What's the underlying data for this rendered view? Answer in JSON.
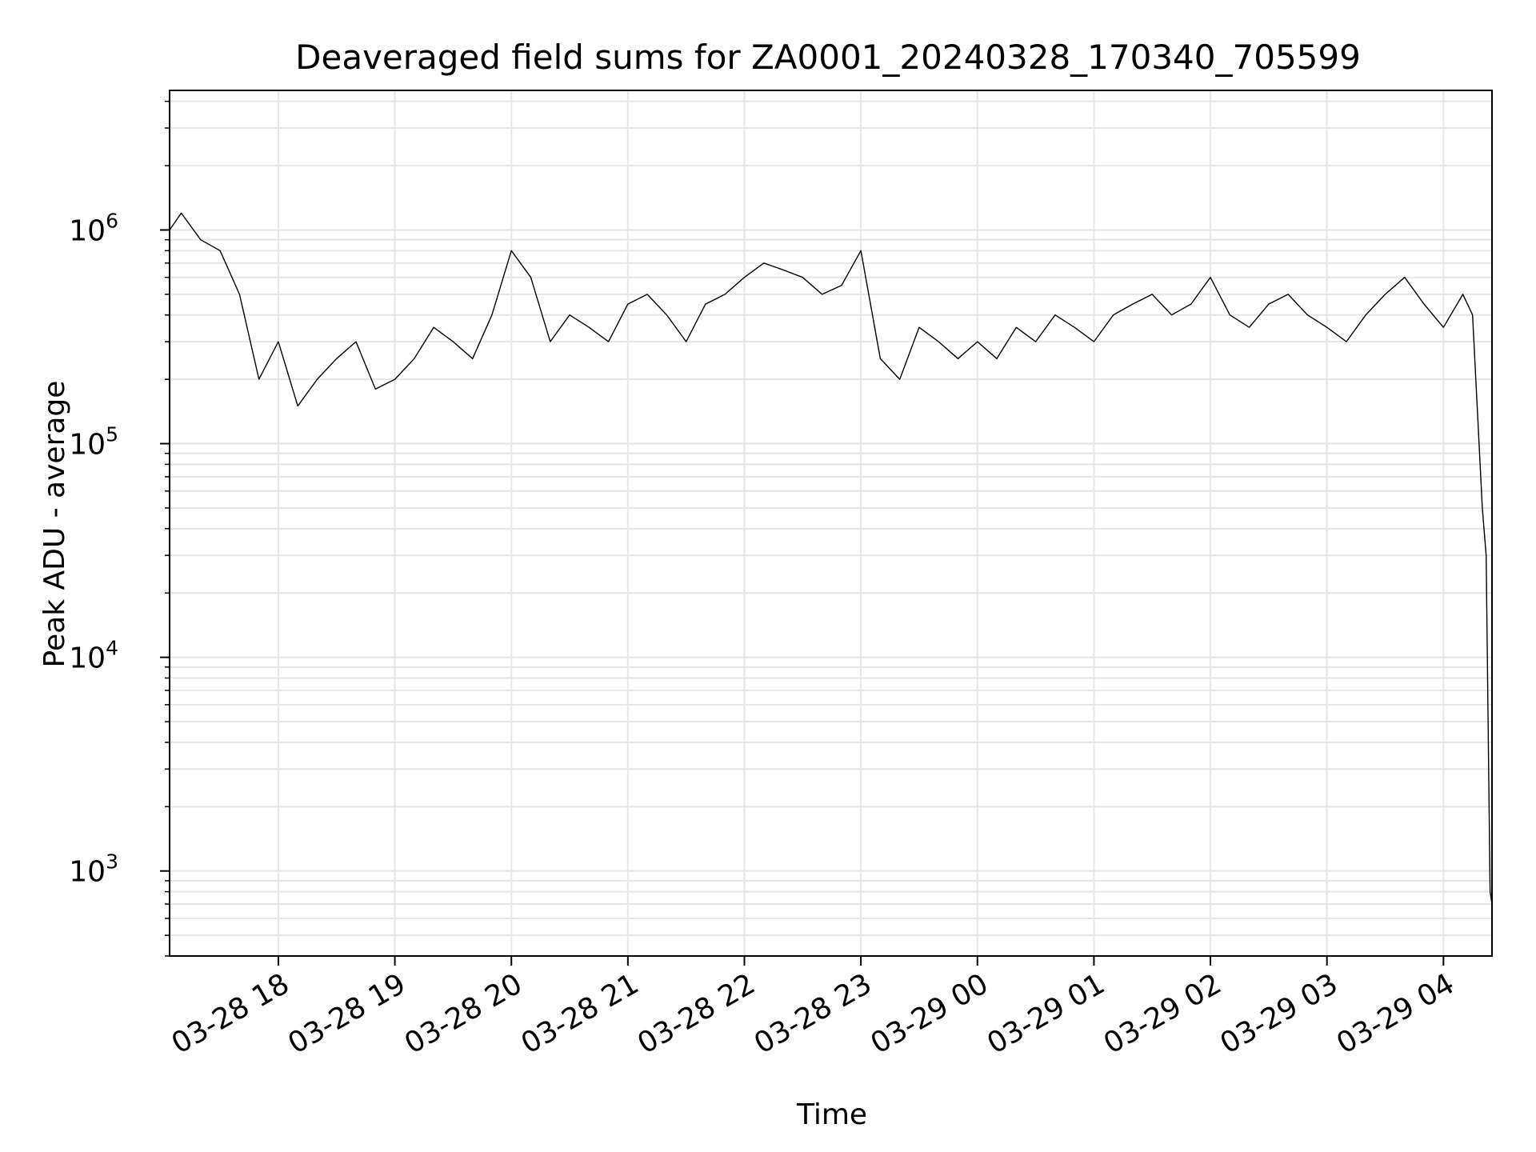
{
  "chart_data": {
    "type": "line",
    "title": "Deaveraged field sums for ZA0001_20240328_170340_705599",
    "xlabel": "Time",
    "ylabel": "Peak ADU - average",
    "yscale": "log",
    "grid": true,
    "line_color": "#000000",
    "grid_color": "#e6e6e6",
    "xlim": [
      "2024-03-28 17:04",
      "2024-03-29 04:25"
    ],
    "ylim": [
      400,
      4500000
    ],
    "x_ticks": [
      {
        "value": "2024-03-28 18:00",
        "label": "03-28 18"
      },
      {
        "value": "2024-03-28 19:00",
        "label": "03-28 19"
      },
      {
        "value": "2024-03-28 20:00",
        "label": "03-28 20"
      },
      {
        "value": "2024-03-28 21:00",
        "label": "03-28 21"
      },
      {
        "value": "2024-03-28 22:00",
        "label": "03-28 22"
      },
      {
        "value": "2024-03-28 23:00",
        "label": "03-28 23"
      },
      {
        "value": "2024-03-29 00:00",
        "label": "03-29 00"
      },
      {
        "value": "2024-03-29 01:00",
        "label": "03-29 01"
      },
      {
        "value": "2024-03-29 02:00",
        "label": "03-29 02"
      },
      {
        "value": "2024-03-29 03:00",
        "label": "03-29 03"
      },
      {
        "value": "2024-03-29 04:00",
        "label": "03-29 04"
      }
    ],
    "y_ticks": [
      {
        "value": 1000,
        "base": "10",
        "exp": "3"
      },
      {
        "value": 10000,
        "base": "10",
        "exp": "4"
      },
      {
        "value": 100000,
        "base": "10",
        "exp": "5"
      },
      {
        "value": 1000000,
        "base": "10",
        "exp": "6"
      }
    ],
    "series": [
      {
        "x": [
          "2024-03-28 17:04",
          "2024-03-28 17:10",
          "2024-03-28 17:20",
          "2024-03-28 17:30",
          "2024-03-28 17:40",
          "2024-03-28 17:50",
          "2024-03-28 18:00",
          "2024-03-28 18:10",
          "2024-03-28 18:20",
          "2024-03-28 18:30",
          "2024-03-28 18:40",
          "2024-03-28 18:50",
          "2024-03-28 19:00",
          "2024-03-28 19:10",
          "2024-03-28 19:20",
          "2024-03-28 19:30",
          "2024-03-28 19:40",
          "2024-03-28 19:50",
          "2024-03-28 20:00",
          "2024-03-28 20:10",
          "2024-03-28 20:20",
          "2024-03-28 20:30",
          "2024-03-28 20:40",
          "2024-03-28 20:50",
          "2024-03-28 21:00",
          "2024-03-28 21:10",
          "2024-03-28 21:20",
          "2024-03-28 21:30",
          "2024-03-28 21:40",
          "2024-03-28 21:50",
          "2024-03-28 22:00",
          "2024-03-28 22:10",
          "2024-03-28 22:20",
          "2024-03-28 22:30",
          "2024-03-28 22:40",
          "2024-03-28 22:50",
          "2024-03-28 23:00",
          "2024-03-28 23:10",
          "2024-03-28 23:20",
          "2024-03-28 23:30",
          "2024-03-28 23:40",
          "2024-03-28 23:50",
          "2024-03-29 00:00",
          "2024-03-29 00:10",
          "2024-03-29 00:20",
          "2024-03-29 00:30",
          "2024-03-29 00:40",
          "2024-03-29 00:50",
          "2024-03-29 01:00",
          "2024-03-29 01:10",
          "2024-03-29 01:20",
          "2024-03-29 01:30",
          "2024-03-29 01:40",
          "2024-03-29 01:50",
          "2024-03-29 02:00",
          "2024-03-29 02:10",
          "2024-03-29 02:20",
          "2024-03-29 02:30",
          "2024-03-29 02:40",
          "2024-03-29 02:50",
          "2024-03-29 03:00",
          "2024-03-29 03:10",
          "2024-03-29 03:20",
          "2024-03-29 03:30",
          "2024-03-29 03:40",
          "2024-03-29 03:50",
          "2024-03-29 04:00",
          "2024-03-29 04:10",
          "2024-03-29 04:15",
          "2024-03-29 04:20",
          "2024-03-29 04:22",
          "2024-03-29 04:24",
          "2024-03-29 04:25"
        ],
        "y": [
          1000000,
          1200000,
          900000,
          800000,
          500000,
          200000,
          300000,
          150000,
          200000,
          250000,
          300000,
          180000,
          200000,
          250000,
          350000,
          300000,
          250000,
          400000,
          800000,
          600000,
          300000,
          400000,
          350000,
          300000,
          450000,
          500000,
          400000,
          300000,
          450000,
          500000,
          600000,
          700000,
          650000,
          600000,
          500000,
          550000,
          800000,
          250000,
          200000,
          350000,
          300000,
          250000,
          300000,
          250000,
          350000,
          300000,
          400000,
          350000,
          300000,
          400000,
          450000,
          500000,
          400000,
          450000,
          600000,
          400000,
          350000,
          450000,
          500000,
          400000,
          350000,
          300000,
          400000,
          500000,
          600000,
          450000,
          350000,
          500000,
          400000,
          50000,
          30000,
          800,
          700
        ]
      }
    ]
  }
}
